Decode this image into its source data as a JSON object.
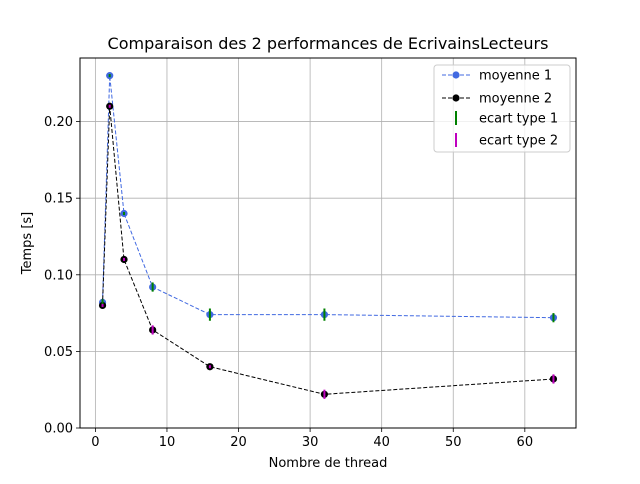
{
  "chart_data": {
    "type": "line",
    "title": "Comparaison des 2 performances de EcrivainsLecteurs",
    "xlabel": "Nombre de thread",
    "ylabel": "Temps [s]",
    "xlim": [
      -2.15,
      67.15
    ],
    "ylim": [
      0.0,
      0.2415
    ],
    "xticks": [
      0,
      10,
      20,
      30,
      40,
      50,
      60
    ],
    "xtick_labels": [
      "0",
      "10",
      "20",
      "30",
      "40",
      "50",
      "60"
    ],
    "yticks": [
      0.0,
      0.05,
      0.1,
      0.15,
      0.2
    ],
    "ytick_labels": [
      "0.00",
      "0.05",
      "0.10",
      "0.15",
      "0.20"
    ],
    "grid": true,
    "legend_position": "top-right",
    "x": [
      1,
      2,
      4,
      8,
      16,
      32,
      64
    ],
    "series": [
      {
        "name": "moyenne 1",
        "values": [
          0.082,
          0.23,
          0.14,
          0.092,
          0.074,
          0.074,
          0.072
        ],
        "color": "#4169e1",
        "style": "dashed"
      },
      {
        "name": "moyenne 2",
        "values": [
          0.08,
          0.21,
          0.11,
          0.064,
          0.04,
          0.022,
          0.032
        ],
        "color": "#000000",
        "style": "dashed"
      }
    ],
    "errorbars": [
      {
        "name": "ecart type 1",
        "color": "#008000",
        "x": [
          1,
          2,
          4,
          8,
          16,
          32,
          64
        ],
        "center": [
          0.082,
          0.23,
          0.14,
          0.092,
          0.074,
          0.074,
          0.072
        ],
        "error": [
          0.002,
          0.001,
          0.001,
          0.003,
          0.004,
          0.004,
          0.003
        ]
      },
      {
        "name": "ecart type 2",
        "color": "#bf00bf",
        "x": [
          1,
          2,
          4,
          8,
          16,
          32,
          64
        ],
        "center": [
          0.08,
          0.21,
          0.11,
          0.064,
          0.04,
          0.022,
          0.032
        ],
        "error": [
          0.001,
          0.001,
          0.001,
          0.003,
          0.001,
          0.003,
          0.003
        ]
      }
    ]
  }
}
